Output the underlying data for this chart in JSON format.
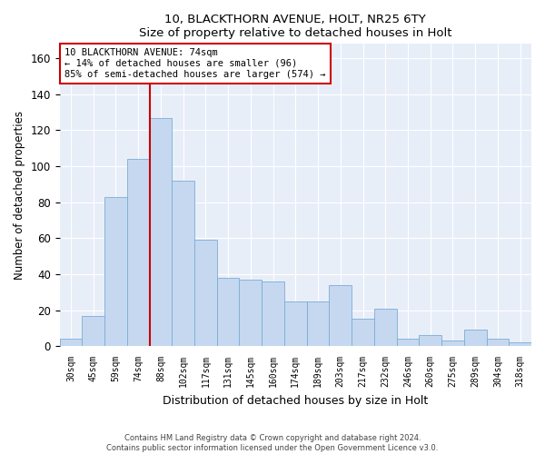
{
  "title_line1": "10, BLACKTHORN AVENUE, HOLT, NR25 6TY",
  "title_line2": "Size of property relative to detached houses in Holt",
  "xlabel": "Distribution of detached houses by size in Holt",
  "ylabel": "Number of detached properties",
  "footer_line1": "Contains HM Land Registry data © Crown copyright and database right 2024.",
  "footer_line2": "Contains public sector information licensed under the Open Government Licence v3.0.",
  "annotation_line1": "10 BLACKTHORN AVENUE: 74sqm",
  "annotation_line2": "← 14% of detached houses are smaller (96)",
  "annotation_line3": "85% of semi-detached houses are larger (574) →",
  "categories": [
    "30sqm",
    "45sqm",
    "59sqm",
    "74sqm",
    "88sqm",
    "102sqm",
    "117sqm",
    "131sqm",
    "145sqm",
    "160sqm",
    "174sqm",
    "189sqm",
    "203sqm",
    "217sqm",
    "232sqm",
    "246sqm",
    "260sqm",
    "275sqm",
    "289sqm",
    "304sqm",
    "318sqm"
  ],
  "values": [
    4,
    17,
    83,
    104,
    127,
    92,
    59,
    38,
    37,
    36,
    25,
    25,
    34,
    15,
    21,
    4,
    6,
    3,
    9,
    4,
    2
  ],
  "bar_color": "#c5d8f0",
  "bar_edge_color": "#7aadd4",
  "vline_color": "#cc0000",
  "vline_index": 3,
  "annotation_box_color": "#cc0000",
  "ylim": [
    0,
    168
  ],
  "yticks": [
    0,
    20,
    40,
    60,
    80,
    100,
    120,
    140,
    160
  ],
  "bg_color": "#ffffff",
  "plot_bg_color": "#e8eef8",
  "grid_color": "#ffffff"
}
